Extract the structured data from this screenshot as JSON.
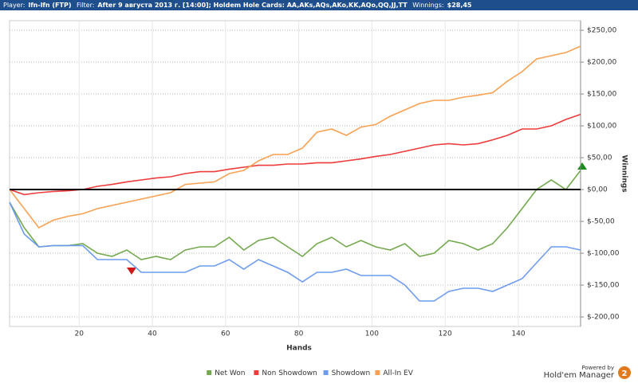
{
  "header": {
    "player_label": "Player:",
    "player": "lfn-lfn (FTP)",
    "filter_label": "Filter:",
    "filter": "After 9 августа 2013 г. [14:00]; Holdem Hole Cards: AA,AKs,AQs,AKo,KK,AQo,QQ,JJ,TT",
    "winnings_label": "Winnings:",
    "winnings": "$28,45"
  },
  "footer": {
    "powered_by": "Powered by",
    "product": "Hold'em Manager",
    "badge": "2"
  },
  "chart_data": {
    "type": "line",
    "x_label": "Hands",
    "y_label": "Winnings",
    "x": [
      1,
      5,
      9,
      13,
      17,
      21,
      25,
      29,
      33,
      37,
      41,
      45,
      49,
      53,
      57,
      61,
      65,
      69,
      73,
      77,
      81,
      85,
      89,
      93,
      97,
      101,
      105,
      109,
      113,
      117,
      121,
      125,
      129,
      133,
      137,
      141,
      145,
      149,
      153,
      157
    ],
    "xlim": [
      1,
      157
    ],
    "xticks": [
      20,
      40,
      60,
      80,
      100,
      120,
      140
    ],
    "ylim": [
      -215,
      265
    ],
    "yticks": [
      {
        "value": 250,
        "label": "$250,00"
      },
      {
        "value": 200,
        "label": "$200,00"
      },
      {
        "value": 150,
        "label": "$150,00"
      },
      {
        "value": 100,
        "label": "$100,00"
      },
      {
        "value": 50,
        "label": "$50,00"
      },
      {
        "value": 0,
        "label": "$0,00"
      },
      {
        "value": -50,
        "label": "$-50,00"
      },
      {
        "value": -100,
        "label": "$-100,00"
      },
      {
        "value": -150,
        "label": "$-150,00"
      },
      {
        "value": -200,
        "label": "$-200,00"
      }
    ],
    "grid": true,
    "series": [
      {
        "name": "Net Won",
        "color": "#74a94f",
        "values": [
          -20,
          -60,
          -90,
          -88,
          -88,
          -85,
          -100,
          -105,
          -95,
          -110,
          -105,
          -110,
          -95,
          -90,
          -90,
          -75,
          -95,
          -80,
          -75,
          -90,
          -105,
          -85,
          -75,
          -90,
          -80,
          -90,
          -95,
          -85,
          -105,
          -100,
          -80,
          -85,
          -95,
          -85,
          -60,
          -30,
          0,
          15,
          0,
          30
        ]
      },
      {
        "name": "Non Showdown",
        "color": "#ee3b3b",
        "values": [
          0,
          -8,
          -5,
          -3,
          -2,
          0,
          5,
          8,
          12,
          15,
          18,
          20,
          25,
          28,
          28,
          32,
          35,
          38,
          38,
          40,
          40,
          42,
          42,
          45,
          48,
          52,
          55,
          60,
          65,
          70,
          72,
          70,
          72,
          78,
          85,
          95,
          95,
          100,
          110,
          118
        ]
      },
      {
        "name": "Showdown",
        "color": "#6d9bef",
        "values": [
          -20,
          -70,
          -90,
          -88,
          -88,
          -88,
          -110,
          -110,
          -110,
          -130,
          -130,
          -130,
          -130,
          -120,
          -120,
          -110,
          -125,
          -110,
          -120,
          -130,
          -145,
          -130,
          -130,
          -125,
          -135,
          -135,
          -135,
          -150,
          -175,
          -175,
          -160,
          -155,
          -155,
          -160,
          -150,
          -140,
          -115,
          -90,
          -90,
          -95
        ]
      },
      {
        "name": "All-In EV",
        "color": "#f8a152",
        "values": [
          0,
          -30,
          -60,
          -48,
          -42,
          -38,
          -30,
          -25,
          -20,
          -15,
          -10,
          -5,
          8,
          10,
          12,
          25,
          30,
          45,
          55,
          55,
          65,
          90,
          95,
          85,
          98,
          102,
          115,
          125,
          135,
          140,
          140,
          145,
          148,
          152,
          170,
          185,
          205,
          210,
          215,
          225
        ]
      }
    ]
  }
}
